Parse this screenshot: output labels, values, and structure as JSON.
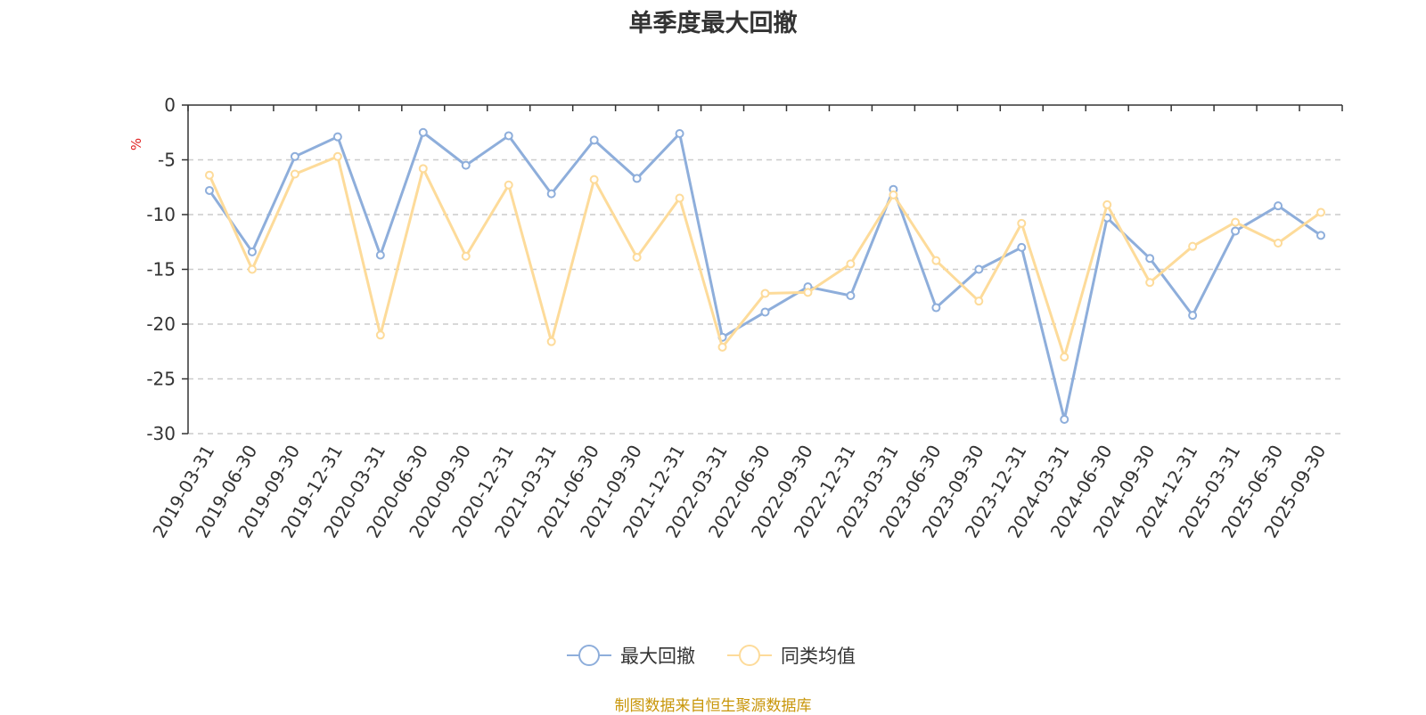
{
  "chart_data": {
    "type": "line",
    "title": "单季度最大回撤",
    "ylabel": "%",
    "ylim": [
      -30,
      0
    ],
    "yticks": [
      "0",
      "-5",
      "-10",
      "-15",
      "-20",
      "-25",
      "-30"
    ],
    "grid": true,
    "legend_position": "bottom",
    "categories": [
      "2019-03-31",
      "2019-06-30",
      "2019-09-30",
      "2019-12-31",
      "2020-03-31",
      "2020-06-30",
      "2020-09-30",
      "2020-12-31",
      "2021-03-31",
      "2021-06-30",
      "2021-09-30",
      "2021-12-31",
      "2022-03-31",
      "2022-06-30",
      "2022-09-30",
      "2022-12-31",
      "2023-03-31",
      "2023-06-30",
      "2023-09-30",
      "2023-12-31",
      "2024-03-31",
      "2024-06-30",
      "2024-09-30",
      "2024-12-31",
      "2025-03-31",
      "2025-06-30",
      "2025-09-30"
    ],
    "series": [
      {
        "name": "最大回撤",
        "color": "#8eaedb",
        "values": [
          -7.8,
          -13.4,
          -4.7,
          -2.9,
          -13.7,
          -2.5,
          -5.5,
          -2.8,
          -8.1,
          -3.2,
          -6.7,
          -2.6,
          -21.2,
          -18.9,
          -16.6,
          -17.4,
          -7.7,
          -18.5,
          -15.0,
          -13.0,
          -28.7,
          -10.3,
          -14.0,
          -19.2,
          -11.5,
          -9.2,
          -11.9
        ]
      },
      {
        "name": "同类均值",
        "color": "#fddb9a",
        "values": [
          -6.4,
          -15.0,
          -6.3,
          -4.7,
          -21.0,
          -5.8,
          -13.8,
          -7.3,
          -21.6,
          -6.8,
          -13.9,
          -8.5,
          -22.1,
          -17.2,
          -17.1,
          -14.5,
          -8.2,
          -14.2,
          -17.9,
          -10.8,
          -23.0,
          -9.1,
          -16.2,
          -12.9,
          -10.7,
          -12.6,
          -9.8
        ]
      }
    ]
  },
  "source_note": "制图数据来自恒生聚源数据库"
}
